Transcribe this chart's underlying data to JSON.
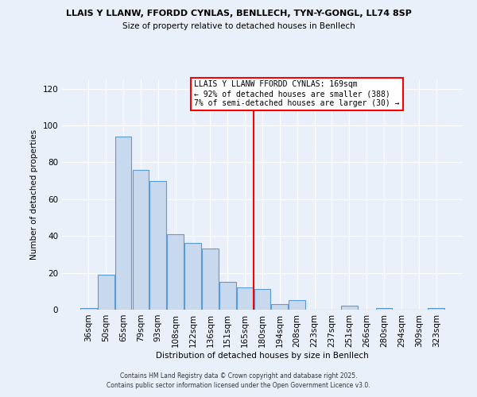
{
  "title1": "LLAIS Y LLANW, FFORDD CYNLAS, BENLLECH, TYN-Y-GONGL, LL74 8SP",
  "title2": "Size of property relative to detached houses in Benllech",
  "xlabel": "Distribution of detached houses by size in Benllech",
  "ylabel": "Number of detached properties",
  "categories": [
    "36sqm",
    "50sqm",
    "65sqm",
    "79sqm",
    "93sqm",
    "108sqm",
    "122sqm",
    "136sqm",
    "151sqm",
    "165sqm",
    "180sqm",
    "194sqm",
    "208sqm",
    "223sqm",
    "237sqm",
    "251sqm",
    "266sqm",
    "280sqm",
    "294sqm",
    "309sqm",
    "323sqm"
  ],
  "values": [
    1,
    19,
    94,
    76,
    70,
    41,
    36,
    33,
    15,
    12,
    11,
    3,
    5,
    0,
    0,
    2,
    0,
    1,
    0,
    0,
    1
  ],
  "bar_color": "#c8d9ee",
  "bar_edge_color": "#5b9bd5",
  "vline_x": 9.5,
  "annotation_line1": "LLAIS Y LLANW FFORDD CYNLAS: 169sqm",
  "annotation_line2": "← 92% of detached houses are smaller (388)",
  "annotation_line3": "7% of semi-detached houses are larger (30) →",
  "ylim": [
    0,
    125
  ],
  "yticks": [
    0,
    20,
    40,
    60,
    80,
    100,
    120
  ],
  "footer1": "Contains HM Land Registry data © Crown copyright and database right 2025.",
  "footer2": "Contains public sector information licensed under the Open Government Licence v3.0.",
  "bg_color": "#eaf0f9",
  "plot_bg_color": "#eaf0f9"
}
